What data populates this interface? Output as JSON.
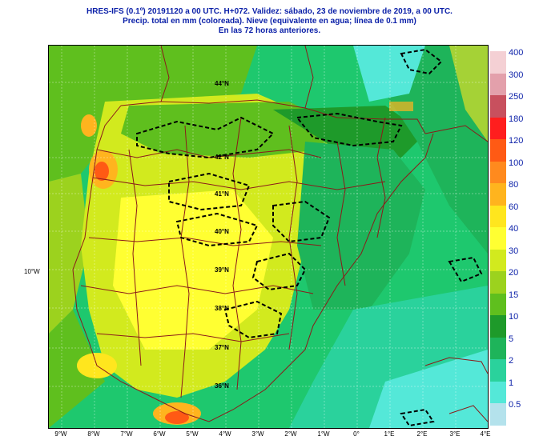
{
  "header": {
    "line1": "HRES-IFS (0.1º) 20191120 a 00 UTC.  H+072. Validez: sábado, 23 de noviembre de 2019,  a  00 UTC.",
    "line2": "Precip. total en mm (coloreada). Nieve (equivalente en agua; línea de 0.1 mm)",
    "line3": "En las 72 horas anteriores."
  },
  "left_lon_label": "10°W",
  "lat_labels": [
    "44°N",
    "42°N",
    "41°N",
    "40°N",
    "39°N",
    "38°N",
    "37°N",
    "36°N"
  ],
  "lon_labels": [
    "9°W",
    "8°W",
    "7°W",
    "6°W",
    "5°W",
    "4°W",
    "3°W",
    "2°W",
    "1°W",
    "0°",
    "1°E",
    "2°E",
    "3°E",
    "4°E"
  ],
  "legend": {
    "labels": [
      "400",
      "300",
      "250",
      "180",
      "120",
      "100",
      "80",
      "60",
      "40",
      "30",
      "20",
      "15",
      "10",
      "5",
      "2",
      "1",
      "0.5"
    ],
    "colors": [
      "#f4d0d4",
      "#e3a0ab",
      "#c8505e",
      "#ff1e1e",
      "#ff5a14",
      "#ff8a1e",
      "#ffb41e",
      "#ffe61e",
      "#ffff32",
      "#d2ea1e",
      "#9cd21e",
      "#5fbf1e",
      "#1e9a2a",
      "#1eb45a",
      "#2ad29c",
      "#54e8d8",
      "#b4e2ec"
    ]
  },
  "map": {
    "sea_color": "#1ec86e",
    "land_color": "#9cd21e",
    "snow_line_color": "#000000",
    "border_color": "#8b1a1a"
  }
}
